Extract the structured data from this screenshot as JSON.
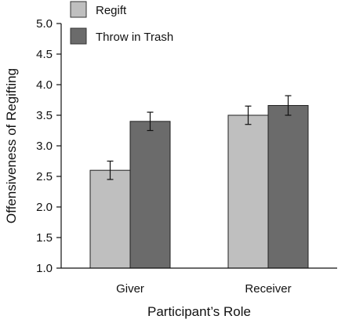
{
  "chart_data": {
    "type": "bar",
    "title": "",
    "xlabel": "Participant’s Role",
    "ylabel": "Offensiveness of Regifting",
    "categories": [
      "Giver",
      "Receiver"
    ],
    "ylim": [
      1.0,
      5.0
    ],
    "yticks": [
      "1.0",
      "1.5",
      "2.0",
      "2.5",
      "3.0",
      "3.5",
      "4.0",
      "4.5",
      "5.0"
    ],
    "grid": false,
    "legend_position": "top-left",
    "series": [
      {
        "name": "Regift",
        "color": "#bfbfbf",
        "values": [
          2.6,
          3.5
        ],
        "error": [
          0.15,
          0.15
        ]
      },
      {
        "name": "Throw in Trash",
        "color": "#6b6b6b",
        "values": [
          3.4,
          3.66
        ],
        "error": [
          0.15,
          0.16
        ]
      }
    ]
  }
}
